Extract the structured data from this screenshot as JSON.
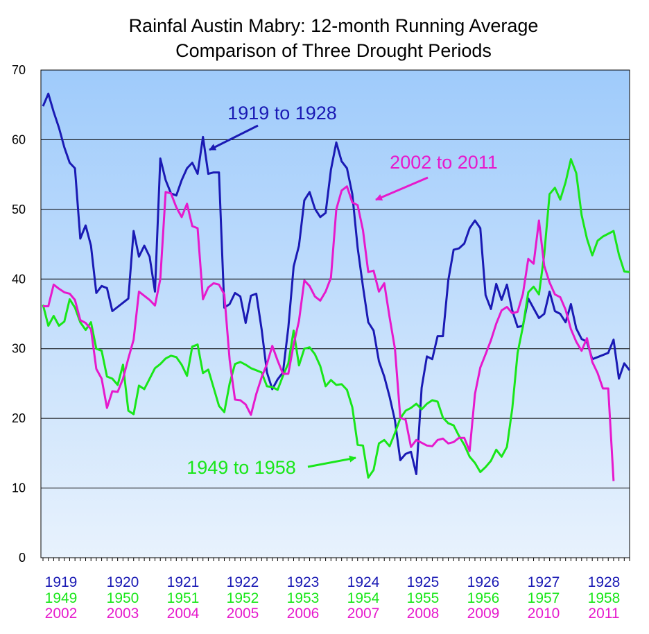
{
  "chart_data": {
    "type": "line",
    "title": "Rainfal Austin Mabry: 12-month Running Average",
    "subtitle": "Comparison of Three Drought Periods",
    "ylim": [
      0,
      70
    ],
    "yticks": [
      0,
      10,
      20,
      30,
      40,
      50,
      60,
      70
    ],
    "grid": true,
    "x_label_rows": [
      {
        "color": "#1a1ab4",
        "labels": [
          "1919",
          "1920",
          "1921",
          "1922",
          "1923",
          "1924",
          "1925",
          "1926",
          "1927",
          "1928"
        ]
      },
      {
        "color": "#19e619",
        "labels": [
          "1949",
          "1950",
          "1951",
          "1952",
          "1953",
          "1954",
          "1955",
          "1956",
          "1957",
          "1958"
        ]
      },
      {
        "color": "#e619cc",
        "labels": [
          "2002",
          "2003",
          "2004",
          "2005",
          "2006",
          "2007",
          "2008",
          "2009",
          "2010",
          "2011"
        ]
      }
    ],
    "series": [
      {
        "color": "#1a1ab4",
        "values": [
          64.8,
          66.6,
          64.0,
          61.7,
          58.9,
          56.7,
          55.9,
          45.8,
          47.7,
          44.8,
          38.0,
          39.0,
          38.7,
          35.4,
          36.0,
          36.6,
          37.2,
          46.9,
          43.2,
          44.8,
          43.2,
          38.2,
          57.3,
          54.2,
          52.3,
          52.0,
          54.2,
          55.9,
          56.7,
          55.1,
          60.4,
          55.1,
          55.3,
          55.3,
          35.9,
          36.4,
          38.0,
          37.5,
          33.7,
          37.6,
          37.9,
          32.8,
          26.6,
          24.2,
          25.6,
          26.6,
          33.0,
          41.8,
          44.8,
          51.3,
          52.5,
          50.1,
          48.9,
          49.5,
          55.7,
          59.6,
          56.9,
          55.9,
          52.2,
          44.5,
          38.9,
          33.8,
          32.6,
          28.2,
          26.0,
          23.1,
          19.7,
          14.0,
          14.9,
          15.2,
          12.0,
          24.4,
          28.9,
          28.5,
          31.8,
          31.8,
          39.8,
          44.2,
          44.4,
          45.1,
          47.3,
          48.4,
          47.3,
          37.7,
          35.7,
          39.3,
          37.0,
          39.2,
          35.5,
          33.1,
          33.3,
          37.2,
          35.8,
          34.4,
          35.0,
          38.2,
          35.4,
          35.0,
          33.8,
          36.4,
          32.9,
          31.4,
          31.0,
          28.5,
          28.8,
          29.1,
          29.4,
          31.3,
          25.7,
          27.9,
          26.9
        ],
        "labels_on_chart": "1919 to 1928"
      },
      {
        "color": "#19e619",
        "values": [
          36.3,
          33.3,
          34.7,
          33.3,
          33.9,
          37.1,
          35.9,
          33.8,
          32.7,
          33.8,
          30.0,
          29.7,
          26.0,
          25.7,
          24.8,
          27.7,
          21.1,
          20.6,
          24.7,
          24.2,
          25.7,
          27.2,
          27.8,
          28.6,
          29.0,
          28.8,
          27.7,
          26.1,
          30.3,
          30.6,
          26.5,
          27.0,
          24.4,
          21.8,
          20.9,
          25.0,
          27.8,
          28.1,
          27.7,
          27.2,
          26.9,
          26.6,
          24.6,
          24.5,
          24.1,
          26.1,
          27.9,
          32.6,
          27.6,
          30.0,
          30.2,
          29.2,
          27.5,
          24.6,
          25.5,
          24.8,
          24.9,
          24.1,
          21.6,
          16.2,
          16.1,
          11.5,
          12.6,
          16.4,
          16.9,
          16.0,
          17.9,
          20.0,
          21.1,
          21.5,
          22.1,
          21.3,
          22.1,
          22.6,
          22.4,
          20.1,
          19.3,
          19.0,
          17.5,
          16.2,
          14.5,
          13.6,
          12.3,
          13.0,
          13.9,
          15.5,
          14.5,
          15.9,
          21.4,
          29.4,
          33.2,
          38.1,
          38.9,
          37.8,
          43.5,
          52.2,
          53.1,
          51.4,
          53.9,
          57.2,
          55.2,
          49.2,
          45.8,
          43.4,
          45.5,
          46.1,
          46.5,
          46.9,
          43.5,
          41.1,
          41.0
        ],
        "labels_on_chart": "1949 to 1958"
      },
      {
        "color": "#e619cc",
        "values": [
          36.1,
          36.1,
          39.2,
          38.6,
          38.1,
          37.9,
          37.0,
          34.1,
          33.7,
          32.8,
          27.1,
          25.7,
          21.5,
          23.9,
          23.8,
          25.7,
          28.6,
          31.3,
          38.2,
          37.6,
          37.0,
          36.2,
          40.0,
          52.5,
          52.3,
          50.3,
          48.9,
          50.8,
          47.6,
          47.3,
          37.1,
          38.8,
          39.4,
          39.2,
          37.8,
          28.4,
          22.7,
          22.6,
          22.0,
          20.5,
          23.5,
          25.9,
          27.8,
          30.4,
          28.3,
          26.4,
          26.4,
          30.6,
          34.0,
          39.8,
          39.0,
          37.5,
          36.9,
          38.2,
          40.2,
          50.0,
          52.7,
          53.3,
          51.0,
          50.6,
          47.0,
          41.0,
          41.2,
          38.2,
          39.4,
          34.5,
          30.0,
          20.1,
          19.8,
          15.9,
          16.9,
          16.5,
          16.1,
          16.0,
          16.9,
          17.1,
          16.4,
          16.6,
          17.2,
          17.2,
          15.3,
          23.5,
          27.3,
          29.2,
          31.2,
          33.6,
          35.5,
          36.0,
          35.1,
          35.3,
          37.9,
          42.9,
          42.2,
          48.4,
          41.9,
          39.5,
          37.8,
          37.4,
          35.6,
          32.8,
          31.0,
          29.7,
          31.5,
          28.1,
          26.5,
          24.3,
          24.3,
          11.0
        ],
        "labels_on_chart": "2002 to 2011"
      }
    ],
    "annotations": [
      {
        "text": "1919 to 1928",
        "color": "#1a1ab4"
      },
      {
        "text": "2002 to 2011",
        "color": "#e619cc"
      },
      {
        "text": "1949 to 1958",
        "color": "#19e619"
      }
    ]
  }
}
